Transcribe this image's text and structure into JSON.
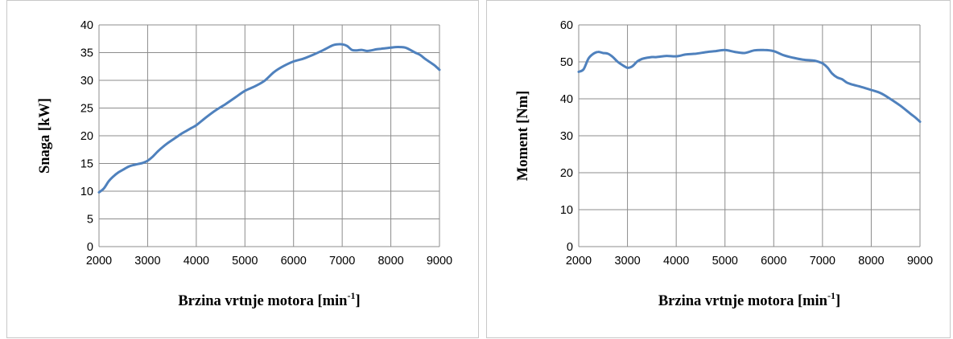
{
  "chart_data": [
    {
      "type": "line",
      "xlabel": "Brzina vrtnje motora [min",
      "xlabel_sup": "-1",
      "xlabel_tail": "]",
      "ylabel": "Snaga [kW]",
      "xlim": [
        2000,
        9000
      ],
      "ylim": [
        0,
        40
      ],
      "x_ticks": [
        "2000",
        "3000",
        "4000",
        "5000",
        "6000",
        "7000",
        "8000",
        "9000"
      ],
      "y_ticks": [
        "0",
        "5",
        "10",
        "15",
        "20",
        "25",
        "30",
        "35",
        "40"
      ],
      "grid": true,
      "legend": "none",
      "line_color": "#4F81BD",
      "series": [
        {
          "x": [
            2000,
            2100,
            2200,
            2300,
            2400,
            2500,
            2600,
            2700,
            2800,
            2900,
            3000,
            3100,
            3200,
            3300,
            3400,
            3500,
            3600,
            3700,
            3800,
            3900,
            4000,
            4200,
            4400,
            4600,
            4800,
            5000,
            5200,
            5400,
            5600,
            5800,
            6000,
            6200,
            6400,
            6600,
            6800,
            6900,
            7000,
            7100,
            7200,
            7300,
            7400,
            7500,
            7600,
            7700,
            7800,
            7900,
            8000,
            8100,
            8200,
            8300,
            8400,
            8500,
            8600,
            8700,
            8800,
            8900,
            9000
          ],
          "values": [
            9.8,
            10.5,
            11.8,
            12.7,
            13.4,
            13.9,
            14.4,
            14.7,
            14.9,
            15.1,
            15.5,
            16.2,
            17.1,
            17.9,
            18.6,
            19.2,
            19.8,
            20.4,
            20.9,
            21.4,
            21.9,
            23.3,
            24.6,
            25.7,
            26.9,
            28.1,
            28.9,
            29.9,
            31.5,
            32.6,
            33.4,
            33.9,
            34.6,
            35.4,
            36.3,
            36.5,
            36.5,
            36.2,
            35.5,
            35.4,
            35.5,
            35.3,
            35.4,
            35.6,
            35.7,
            35.8,
            35.9,
            36.0,
            36.0,
            35.9,
            35.5,
            35.0,
            34.6,
            33.9,
            33.3,
            32.7,
            31.9
          ]
        }
      ]
    },
    {
      "type": "line",
      "xlabel": "Brzina vrtnje motora [min",
      "xlabel_sup": "-1",
      "xlabel_tail": "]",
      "ylabel": "Moment [Nm]",
      "xlim": [
        2000,
        9000
      ],
      "ylim": [
        0,
        60
      ],
      "x_ticks": [
        "2000",
        "3000",
        "4000",
        "5000",
        "6000",
        "7000",
        "8000",
        "9000"
      ],
      "y_ticks": [
        "0",
        "10",
        "20",
        "30",
        "40",
        "50",
        "60"
      ],
      "grid": true,
      "legend": "none",
      "line_color": "#4F81BD",
      "series": [
        {
          "x": [
            2000,
            2100,
            2200,
            2300,
            2400,
            2500,
            2600,
            2700,
            2800,
            2900,
            3000,
            3100,
            3200,
            3300,
            3400,
            3500,
            3600,
            3800,
            4000,
            4200,
            4400,
            4600,
            4800,
            5000,
            5200,
            5400,
            5600,
            5800,
            6000,
            6200,
            6400,
            6600,
            6800,
            6900,
            7000,
            7100,
            7200,
            7300,
            7400,
            7500,
            7600,
            7800,
            8000,
            8200,
            8400,
            8600,
            8800,
            8900,
            9000
          ],
          "values": [
            47.3,
            48.0,
            50.9,
            52.2,
            52.7,
            52.4,
            52.2,
            51.3,
            50.0,
            49.1,
            48.4,
            48.8,
            50.1,
            50.8,
            51.1,
            51.3,
            51.3,
            51.6,
            51.5,
            52.0,
            52.2,
            52.6,
            52.9,
            53.2,
            52.7,
            52.4,
            53.1,
            53.2,
            52.9,
            51.8,
            51.1,
            50.6,
            50.4,
            50.1,
            49.6,
            48.5,
            46.8,
            45.8,
            45.3,
            44.4,
            43.9,
            43.2,
            42.4,
            41.5,
            39.9,
            38.1,
            36.0,
            35.0,
            33.8
          ]
        }
      ]
    }
  ]
}
